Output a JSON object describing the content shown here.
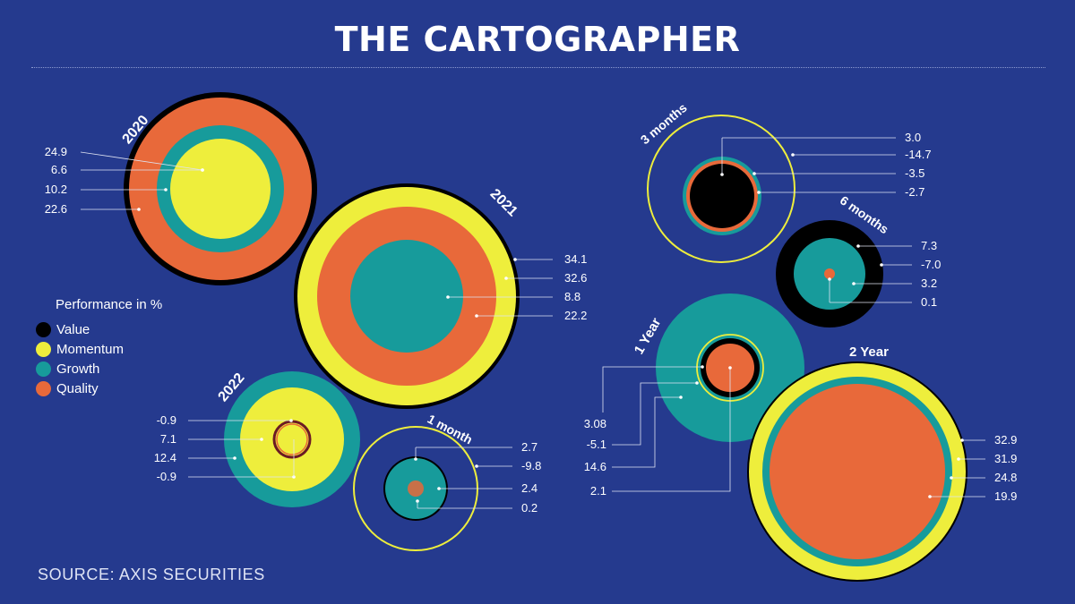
{
  "title": "THE CARTOGRAPHER",
  "source": "SOURCE: AXIS SECURITIES",
  "legend": {
    "title": "Performance in %",
    "items": [
      {
        "name": "Value",
        "color": "#000000"
      },
      {
        "name": "Momentum",
        "color": "#eeee3c"
      },
      {
        "name": "Growth",
        "color": "#179b9b"
      },
      {
        "name": "Quality",
        "color": "#e8693a"
      }
    ]
  },
  "colors": {
    "background": "#253a8e",
    "value": "#000000",
    "momentum": "#eeee3c",
    "growth": "#179b9b",
    "quality": "#e8693a",
    "guide": "#e6e25a"
  },
  "chart_data": {
    "type": "nested bubble",
    "unit": "Performance in %",
    "series": [
      "Value",
      "Momentum",
      "Growth",
      "Quality"
    ],
    "groups": [
      {
        "label": "2020",
        "value": 24.9,
        "momentum": 6.6,
        "growth": 10.2,
        "quality": 22.6
      },
      {
        "label": "2021",
        "value": 34.1,
        "momentum": 32.6,
        "growth": 8.8,
        "quality": 22.2
      },
      {
        "label": "2022",
        "value": -0.9,
        "momentum": 7.1,
        "growth": 12.4,
        "quality": -0.9
      },
      {
        "label": "1 month",
        "value": 2.7,
        "momentum": -9.8,
        "growth": 2.4,
        "quality": 0.2
      },
      {
        "label": "3 months",
        "value": 3.0,
        "momentum": -14.7,
        "growth": -3.5,
        "quality": -2.7
      },
      {
        "label": "6 months",
        "value": 7.3,
        "momentum": -7.0,
        "growth": 3.2,
        "quality": 0.1
      },
      {
        "label": "1 Year",
        "value": 3.08,
        "momentum": -5.1,
        "growth": 14.6,
        "quality": 2.1
      },
      {
        "label": "2 Year",
        "value": 32.9,
        "momentum": 31.9,
        "growth": 24.8,
        "quality": 19.9
      }
    ],
    "labels": {
      "2020": [
        "24.9",
        "6.6",
        "10.2",
        "22.6"
      ],
      "2021": [
        "34.1",
        "32.6",
        "8.8",
        "22.2"
      ],
      "2022": [
        "-0.9",
        "7.1",
        "12.4",
        "-0.9"
      ],
      "1 month": [
        "2.7",
        "-9.8",
        "2.4",
        "0.2"
      ],
      "3 months": [
        "3.0",
        "-14.7",
        "-3.5",
        "-2.7"
      ],
      "6 months": [
        "7.3",
        "-7.0",
        "3.2",
        "0.1"
      ],
      "1 Year": [
        "3.08",
        "-5.1",
        "14.6",
        "2.1"
      ],
      "2 Year": [
        "32.9",
        "31.9",
        "24.8",
        "19.9"
      ]
    }
  }
}
